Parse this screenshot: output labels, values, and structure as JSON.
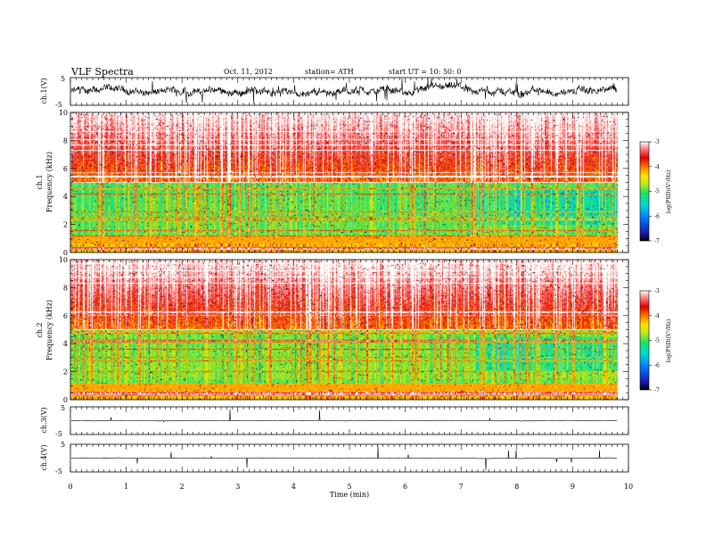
{
  "header": {
    "title": "VLF  Spectra",
    "date": "Oct. 11, 2012",
    "station": "station= ATH",
    "start": "start  UT  =    10: 50: 0"
  },
  "chart_data": [
    {
      "type": "line",
      "ylabel": "ch.1(V)",
      "ylim": [
        -5,
        5
      ],
      "yticks": [
        "5",
        "-5"
      ],
      "baseline": 0,
      "description_level": "noisy waveform"
    },
    {
      "type": "heatmap",
      "ylabel_line1": "ch.1",
      "ylabel_line2": "Frequency  (kHz)",
      "ylim": [
        0,
        10
      ],
      "yticks": [
        "10",
        "8",
        "6",
        "4",
        "2",
        "0"
      ],
      "colorbar": {
        "label": "log(PSD)(V²/Hz)",
        "ticks": [
          "-3",
          "-4",
          "-5",
          "-6",
          "-7"
        ],
        "range": [
          -7,
          -3
        ]
      }
    },
    {
      "type": "heatmap",
      "ylabel_line1": "ch.2",
      "ylabel_line2": "Frequency  (kHz)",
      "ylim": [
        0,
        10
      ],
      "yticks": [
        "10",
        "8",
        "6",
        "4",
        "2",
        "0"
      ],
      "colorbar": {
        "label": "log(PSD)(V²/Hz)",
        "ticks": [
          "-3",
          "-4",
          "-5",
          "-6",
          "-7"
        ],
        "range": [
          -7,
          -3
        ]
      }
    },
    {
      "type": "line",
      "ylabel": "ch.3(V)",
      "ylim": [
        -5,
        5
      ],
      "yticks": [
        "5",
        "-5"
      ],
      "baseline": 0
    },
    {
      "type": "line",
      "ylabel": "ch.4(V)",
      "ylim": [
        -5,
        5
      ],
      "yticks": [
        "5",
        "-5"
      ],
      "baseline": 0
    }
  ],
  "xaxis": {
    "label": "Time  (min)",
    "range": [
      0,
      10
    ],
    "ticks": [
      "0",
      "1",
      "2",
      "3",
      "4",
      "5",
      "6",
      "7",
      "8",
      "9",
      "10"
    ],
    "data_end": 9.8
  },
  "colors": {
    "axis": "#000000",
    "cmap": [
      "#000000",
      "#1a1aa8",
      "#0070ff",
      "#00d8d8",
      "#20e060",
      "#c8e818",
      "#ffe000",
      "#ff8000",
      "#e00000",
      "#ff8080",
      "#ffffff"
    ]
  }
}
